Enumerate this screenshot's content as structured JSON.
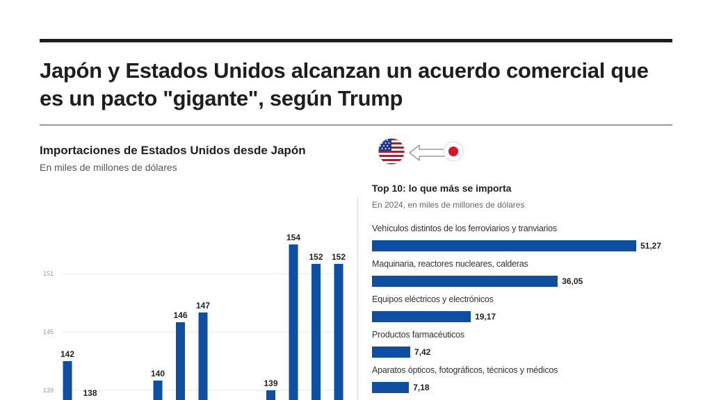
{
  "headline": "Japón y Estados Unidos alcanzan un acuerdo comercial que es un pacto \"gigante\", según Trump",
  "chart_data": [
    {
      "type": "bar",
      "title": "Importaciones de Estados Unidos desde Japón",
      "subtitle": "En miles de millones de dólares",
      "flags": {
        "from": "japan-flag-icon",
        "to": "us-flag-icon",
        "arrow": "arrow-left-icon"
      },
      "ytick_labels": [
        "151",
        "145",
        "139"
      ],
      "yticks": [
        151,
        145,
        139
      ],
      "ylim": [
        138,
        155
      ],
      "values": [
        142,
        138,
        null,
        null,
        140,
        146,
        147,
        null,
        null,
        139,
        154,
        152,
        152
      ],
      "value_labels": [
        "142",
        "138",
        "",
        "",
        "140",
        "146",
        "147",
        "",
        "",
        "139",
        "154",
        "152",
        "152"
      ],
      "color": "#0f4fa3"
    },
    {
      "type": "bar",
      "orientation": "horizontal",
      "title": "Top 10: lo que más se importa",
      "subtitle": "En 2024, en miles de millones de dólares",
      "categories": [
        "Vehículos distintos de los ferroviarios y tranviarios",
        "Maquinaria, reactores nucleares, calderas",
        "Equipos eléctricos y electrónicos",
        "Productos farmacéuticos",
        "Aparatos ópticos, fotográficos, técnicos y médicos"
      ],
      "values": [
        51.27,
        36.05,
        19.17,
        7.42,
        7.18
      ],
      "value_labels": [
        "51,27",
        "36,05",
        "19,17",
        "7,42",
        "7,18"
      ],
      "xlim": [
        0,
        51.27
      ],
      "color": "#0f4fa3"
    }
  ]
}
